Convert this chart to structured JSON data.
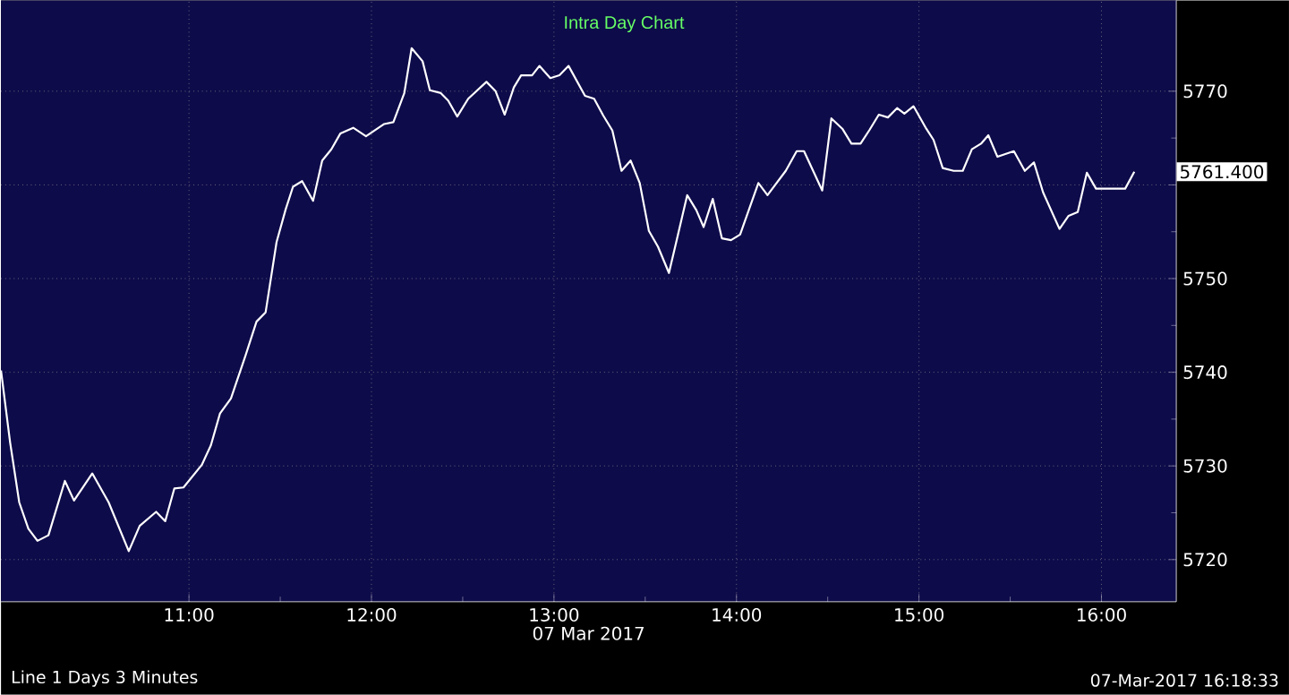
{
  "chart_data": {
    "type": "line",
    "title": "Intra Day Chart",
    "xlabel": "07 Mar 2017",
    "annotations": [
      "5761.400",
      "Line 1 Days 3 Minutes",
      "07-Mar-2017 16:18:33"
    ],
    "xlim": [
      9.97,
      16.41
    ],
    "ylim": [
      5715.5,
      5779.7
    ],
    "xticks": [
      {
        "value": 11,
        "label": "11:00"
      },
      {
        "value": 12,
        "label": "12:00"
      },
      {
        "value": 13,
        "label": "13:00"
      },
      {
        "value": 14,
        "label": "14:00"
      },
      {
        "value": 15,
        "label": "15:00"
      },
      {
        "value": 16,
        "label": "16:00"
      }
    ],
    "yticks": [
      5720,
      5730,
      5740,
      5750,
      {
        "value": 5760,
        "label": null
      },
      5770
    ],
    "grid": true,
    "marker": "none",
    "line_style": "solid",
    "series": [
      {
        "color": "#ffffff",
        "x": [
          9.97,
          10.02,
          10.07,
          10.12,
          10.17,
          10.23,
          10.32,
          10.37,
          10.47,
          10.56,
          10.67,
          10.73,
          10.82,
          10.87,
          10.92,
          10.97,
          11.07,
          11.12,
          11.17,
          11.23,
          11.31,
          11.37,
          11.42,
          11.48,
          11.53,
          11.57,
          11.62,
          11.68,
          11.73,
          11.78,
          11.83,
          11.9,
          11.97,
          12.07,
          12.12,
          12.18,
          12.22,
          12.28,
          12.32,
          12.38,
          12.42,
          12.47,
          12.53,
          12.63,
          12.68,
          12.73,
          12.78,
          12.82,
          12.88,
          12.92,
          12.98,
          13.03,
          13.08,
          13.17,
          13.22,
          13.27,
          13.32,
          13.37,
          13.42,
          13.47,
          13.52,
          13.57,
          13.63,
          13.67,
          13.73,
          13.78,
          13.82,
          13.87,
          13.92,
          13.97,
          14.02,
          14.12,
          14.17,
          14.27,
          14.33,
          14.37,
          14.47,
          14.52,
          14.58,
          14.63,
          14.68,
          14.73,
          14.78,
          14.83,
          14.88,
          14.92,
          14.97,
          15.04,
          15.08,
          15.13,
          15.19,
          15.24,
          15.29,
          15.34,
          15.38,
          15.43,
          15.52,
          15.58,
          15.63,
          15.68,
          15.77,
          15.82,
          15.87,
          15.92,
          15.97,
          16.13,
          16.18
        ],
        "values": [
          5740.2,
          5732.5,
          5726.1,
          5723.3,
          5722.0,
          5722.6,
          5728.4,
          5726.3,
          5729.2,
          5726.1,
          5720.9,
          5723.6,
          5725.1,
          5724.1,
          5727.6,
          5727.7,
          5730.1,
          5732.2,
          5735.6,
          5737.2,
          5741.8,
          5745.4,
          5746.4,
          5753.9,
          5757.4,
          5759.8,
          5760.4,
          5758.3,
          5762.6,
          5763.8,
          5765.5,
          5766.1,
          5765.2,
          5766.5,
          5766.7,
          5769.8,
          5774.6,
          5773.2,
          5770.1,
          5769.8,
          5769.0,
          5767.3,
          5769.2,
          5771.0,
          5770.0,
          5767.5,
          5770.4,
          5771.7,
          5771.7,
          5772.7,
          5771.4,
          5771.7,
          5772.7,
          5769.5,
          5769.2,
          5767.4,
          5765.8,
          5761.5,
          5762.6,
          5760.2,
          5755.1,
          5753.4,
          5750.6,
          5753.9,
          5758.9,
          5757.3,
          5755.5,
          5758.5,
          5754.3,
          5754.1,
          5754.7,
          5760.2,
          5758.9,
          5761.5,
          5763.6,
          5763.6,
          5759.4,
          5767.1,
          5766.0,
          5764.4,
          5764.4,
          5765.9,
          5767.5,
          5767.2,
          5768.2,
          5767.6,
          5768.4,
          5766.0,
          5764.8,
          5761.8,
          5761.5,
          5761.5,
          5763.8,
          5764.4,
          5765.3,
          5763.0,
          5763.6,
          5761.5,
          5762.4,
          5759.2,
          5755.3,
          5756.7,
          5757.1,
          5761.3,
          5759.6,
          5759.6,
          5761.4
        ]
      }
    ]
  }
}
